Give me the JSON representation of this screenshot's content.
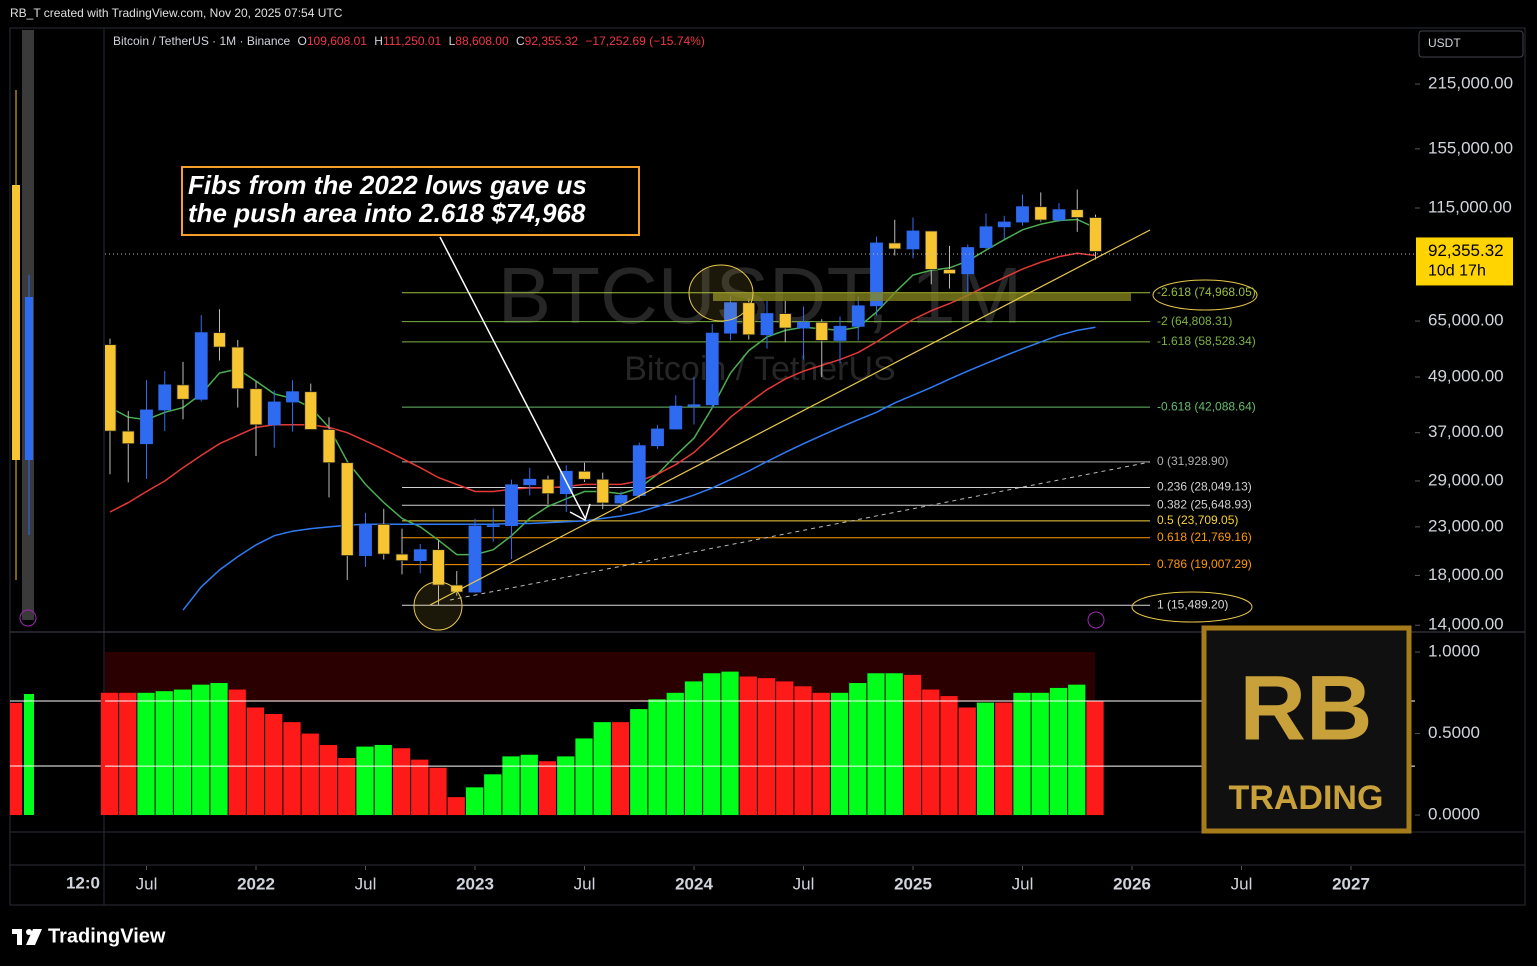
{
  "header": {
    "text": "RB_T created with TradingView.com, Nov 20, 2025 07:54 UTC"
  },
  "legend": {
    "symbol": "Bitcoin / TetherUS · 1M · Binance",
    "ohlc": [
      {
        "key": "O",
        "value": "109,608.01"
      },
      {
        "key": "H",
        "value": "111,250.01"
      },
      {
        "key": "L",
        "value": "88,608.00"
      },
      {
        "key": "C",
        "value": "92,355.32"
      }
    ],
    "change": "−17,252.69 (−15.74%)"
  },
  "currency_button": "USDT",
  "watermark": {
    "ticker": "BTCUSDT, 1M",
    "name": "Bitcoin / TetherUS"
  },
  "annotation": {
    "lines": [
      "Fibs from the 2022 lows gave us",
      "the push area into 2.618 $74,968"
    ]
  },
  "left_pane": {
    "time_label": "12:0"
  },
  "logo": {
    "monogram": "RB",
    "text": "TRADING"
  },
  "footer": {
    "brand": "TradingView"
  },
  "chart_data": [
    {
      "type": "candlestick",
      "log_scale": true,
      "up_color": "#2f6bf0",
      "down_color": "#f7c531",
      "x": [
        "2021-05",
        "2021-06",
        "2021-07",
        "2021-08",
        "2021-09",
        "2021-10",
        "2021-11",
        "2021-12",
        "2022-01",
        "2022-02",
        "2022-03",
        "2022-04",
        "2022-05",
        "2022-06",
        "2022-07",
        "2022-08",
        "2022-09",
        "2022-10",
        "2022-11",
        "2022-12",
        "2023-01",
        "2023-02",
        "2023-03",
        "2023-04",
        "2023-05",
        "2023-06",
        "2023-07",
        "2023-08",
        "2023-09",
        "2023-10",
        "2023-11",
        "2023-12",
        "2024-01",
        "2024-02",
        "2024-03",
        "2024-04",
        "2024-05",
        "2024-06",
        "2024-07",
        "2024-08",
        "2024-09",
        "2024-10",
        "2024-11",
        "2024-12",
        "2025-01",
        "2025-02",
        "2025-03",
        "2025-04",
        "2025-05",
        "2025-06",
        "2025-07",
        "2025-08",
        "2025-09",
        "2025-10",
        "2025-11"
      ],
      "open": [
        57700,
        37300,
        35000,
        41500,
        47100,
        43800,
        61300,
        57000,
        46200,
        38500,
        43200,
        45500,
        37600,
        31800,
        19900,
        23300,
        20050,
        19400,
        20500,
        17150,
        16550,
        23100,
        23150,
        28450,
        29250,
        27200,
        30450,
        29250,
        25950,
        26950,
        34650,
        37700,
        42300,
        42600,
        61150,
        71300,
        60650,
        67500,
        62750,
        64600,
        58950,
        63300,
        70200,
        96400,
        93550,
        102400,
        84350,
        82550,
        94200,
        104600,
        107150,
        115750,
        108250,
        114050,
        109608.01
      ],
      "high": [
        59500,
        41300,
        48200,
        50500,
        52900,
        67000,
        69000,
        59100,
        48000,
        45800,
        48200,
        47400,
        40000,
        31900,
        24700,
        25200,
        22800,
        21100,
        21500,
        18400,
        23950,
        25250,
        29200,
        31000,
        29800,
        31400,
        31800,
        30250,
        27500,
        35200,
        38450,
        44700,
        48950,
        64000,
        73800,
        72800,
        71950,
        71950,
        70000,
        65600,
        66500,
        73600,
        99600,
        108350,
        109600,
        102500,
        95000,
        95750,
        111950,
        110550,
        123200,
        124450,
        117900,
        126200,
        111250.01
      ],
      "low": [
        30000,
        28800,
        29300,
        37300,
        39600,
        43300,
        53250,
        42000,
        32900,
        34300,
        37200,
        37600,
        26700,
        17600,
        18800,
        19500,
        18100,
        18200,
        15500,
        16250,
        16500,
        21350,
        19550,
        26950,
        25800,
        24800,
        28850,
        25150,
        24900,
        26550,
        34100,
        37600,
        38550,
        41900,
        59000,
        59200,
        56550,
        58400,
        53500,
        49000,
        52550,
        58900,
        66850,
        90500,
        89250,
        78250,
        76600,
        74500,
        93400,
        98200,
        105300,
        107350,
        107250,
        102000,
        88608
      ],
      "close": [
        37300,
        35000,
        41500,
        47100,
        43800,
        61300,
        57000,
        46200,
        38500,
        43200,
        45500,
        37600,
        31800,
        19900,
        23300,
        20050,
        19400,
        20500,
        17150,
        16550,
        23100,
        23150,
        28450,
        29250,
        27200,
        30450,
        29250,
        25950,
        26950,
        34650,
        37700,
        42300,
        42600,
        61150,
        71300,
        60650,
        67500,
        62750,
        64600,
        58950,
        63300,
        70200,
        96400,
        93550,
        102400,
        84350,
        82550,
        94200,
        104600,
        107150,
        115750,
        108250,
        114050,
        109608.01,
        92355.32
      ],
      "series": [
        {
          "color": "#4caf50",
          "values": [
            42000,
            40000,
            39500,
            41000,
            42000,
            45000,
            50000,
            51000,
            48000,
            45000,
            44000,
            42000,
            38000,
            32000,
            28500,
            26000,
            24000,
            23000,
            21500,
            20000,
            20000,
            20500,
            22000,
            24000,
            25500,
            26500,
            27500,
            27500,
            27200,
            28000,
            30000,
            33000,
            36000,
            42000,
            50000,
            56000,
            60000,
            62000,
            63000,
            62500,
            62000,
            63000,
            68000,
            75000,
            82000,
            84000,
            85000,
            88000,
            93000,
            98000,
            103000,
            106000,
            108000,
            108500,
            104000
          ]
        },
        {
          "color": "#e53935",
          "values": [
            24800,
            26000,
            27500,
            29000,
            31000,
            33000,
            35000,
            36500,
            38000,
            38500,
            38500,
            38500,
            38000,
            37000,
            35500,
            34000,
            32500,
            31000,
            29500,
            28500,
            27500,
            27500,
            27800,
            28000,
            28000,
            28200,
            28500,
            28500,
            28500,
            29000,
            30000,
            31500,
            33500,
            36500,
            40000,
            43000,
            46000,
            48500,
            50500,
            52000,
            53500,
            55500,
            58500,
            62000,
            65500,
            68500,
            71000,
            74000,
            77500,
            81000,
            84500,
            87500,
            90000,
            91500,
            90500
          ]
        },
        {
          "color": "#2f7bf5",
          "values": [
            null,
            null,
            null,
            null,
            15100,
            17000,
            18500,
            19800,
            21000,
            22000,
            22500,
            22800,
            23000,
            23200,
            23300,
            23300,
            23300,
            23300,
            23300,
            23300,
            23300,
            23300,
            23400,
            23400,
            23500,
            23600,
            23700,
            24000,
            24300,
            24800,
            25500,
            26200,
            27000,
            28000,
            29200,
            30500,
            32000,
            33500,
            35000,
            36500,
            38000,
            39500,
            41000,
            43000,
            44700,
            46500,
            48500,
            50500,
            52500,
            54500,
            56500,
            58500,
            60500,
            62000,
            63000
          ]
        }
      ],
      "ylim": [
        13530,
        285300
      ],
      "xlim": [
        "2021-05",
        "2027-05"
      ],
      "yticks": [
        {
          "value": 215000,
          "label": "215,000.00"
        },
        {
          "value": 155000,
          "label": "155,000.00"
        },
        {
          "value": 115000,
          "label": "115,000.00"
        },
        {
          "value": 65000,
          "label": "65,000.00"
        },
        {
          "value": 49000,
          "label": "49,000.00"
        },
        {
          "value": 37000,
          "label": "37,000.00"
        },
        {
          "value": 29000,
          "label": "29,000.00"
        },
        {
          "value": 23000,
          "label": "23,000.00"
        },
        {
          "value": 18000,
          "label": "18,000.00"
        },
        {
          "value": 14000,
          "label": "14,000.00"
        }
      ],
      "xticks": [
        {
          "value": "2021-07",
          "label": "Jul"
        },
        {
          "value": "2022-01",
          "label": "2022"
        },
        {
          "value": "2022-07",
          "label": "Jul"
        },
        {
          "value": "2023-01",
          "label": "2023"
        },
        {
          "value": "2023-07",
          "label": "Jul"
        },
        {
          "value": "2024-01",
          "label": "2024"
        },
        {
          "value": "2024-07",
          "label": "Jul"
        },
        {
          "value": "2025-01",
          "label": "2025"
        },
        {
          "value": "2025-07",
          "label": "Jul"
        },
        {
          "value": "2026-01",
          "label": "2026"
        },
        {
          "value": "2026-07",
          "label": "Jul"
        },
        {
          "value": "2027-01",
          "label": "2027"
        }
      ],
      "fib_levels": [
        {
          "label": "-2.618 (74,968.05)",
          "value": 74968.05,
          "color": "#9bbf3a"
        },
        {
          "label": "-2 (64,808.31)",
          "value": 64808.31,
          "color": "#7cb342"
        },
        {
          "label": "-1.618 (58,528.34)",
          "value": 58528.34,
          "color": "#7cb342"
        },
        {
          "label": "-0.618 (42,088.64)",
          "value": 42088.64,
          "color": "#66bb6a"
        },
        {
          "label": "0 (31,928.90)",
          "value": 31928.9,
          "color": "#b0b0b0"
        },
        {
          "label": "0.236 (28,049.13)",
          "value": 28049.13,
          "color": "#d0d0d0"
        },
        {
          "label": "0.382 (25,648.93)",
          "value": 25648.93,
          "color": "#d0d0d0"
        },
        {
          "label": "0.5 (23,709.05)",
          "value": 23709.05,
          "color": "#f7d13b"
        },
        {
          "label": "0.618 (21,769.16)",
          "value": 21769.16,
          "color": "#ff9800"
        },
        {
          "label": "0.786 (19,007.29)",
          "value": 19007.29,
          "color": "#ff9800"
        },
        {
          "label": "1 (15,489.20)",
          "value": 15489.2,
          "color": "#d8d8d8"
        }
      ],
      "last_price": {
        "value": 92355.32,
        "label": "92,355.32",
        "countdown": "10d 17h",
        "color": "#ffd400"
      }
    },
    {
      "type": "bar",
      "values": [
        0.75,
        0.75,
        0.75,
        0.76,
        0.77,
        0.8,
        0.81,
        0.77,
        0.66,
        0.62,
        0.57,
        0.5,
        0.43,
        0.35,
        0.42,
        0.43,
        0.41,
        0.34,
        0.29,
        0.11,
        0.17,
        0.25,
        0.36,
        0.37,
        0.33,
        0.36,
        0.47,
        0.57,
        0.57,
        0.65,
        0.71,
        0.75,
        0.82,
        0.87,
        0.88,
        0.85,
        0.84,
        0.82,
        0.79,
        0.75,
        0.75,
        0.81,
        0.87,
        0.87,
        0.86,
        0.77,
        0.73,
        0.66,
        0.69,
        0.69,
        0.75,
        0.75,
        0.78,
        0.8,
        0.7
      ],
      "colors": [
        "#ff1a1a",
        "#ff1a1a",
        "#00ff1a",
        "#00ff1a",
        "#00ff1a",
        "#00ff1a",
        "#00ff1a",
        "#ff1a1a",
        "#ff1a1a",
        "#ff1a1a",
        "#ff1a1a",
        "#ff1a1a",
        "#ff1a1a",
        "#ff1a1a",
        "#00ff1a",
        "#00ff1a",
        "#ff1a1a",
        "#ff1a1a",
        "#ff1a1a",
        "#ff1a1a",
        "#00ff1a",
        "#00ff1a",
        "#00ff1a",
        "#00ff1a",
        "#ff1a1a",
        "#00ff1a",
        "#00ff1a",
        "#00ff1a",
        "#ff1a1a",
        "#00ff1a",
        "#00ff1a",
        "#00ff1a",
        "#00ff1a",
        "#00ff1a",
        "#00ff1a",
        "#ff1a1a",
        "#ff1a1a",
        "#ff1a1a",
        "#ff1a1a",
        "#ff1a1a",
        "#00ff1a",
        "#00ff1a",
        "#00ff1a",
        "#00ff1a",
        "#ff1a1a",
        "#ff1a1a",
        "#ff1a1a",
        "#ff1a1a",
        "#00ff1a",
        "#ff1a1a",
        "#00ff1a",
        "#00ff1a",
        "#00ff1a",
        "#00ff1a",
        "#ff1a1a"
      ],
      "ylim": [
        -0.104,
        1.074
      ],
      "yticks": [
        {
          "value": 1,
          "label": "1.0000"
        },
        {
          "value": 0.5,
          "label": "0.5000"
        },
        {
          "value": 0,
          "label": "0.0000"
        }
      ],
      "levels": [
        0.7,
        0.3
      ]
    }
  ]
}
